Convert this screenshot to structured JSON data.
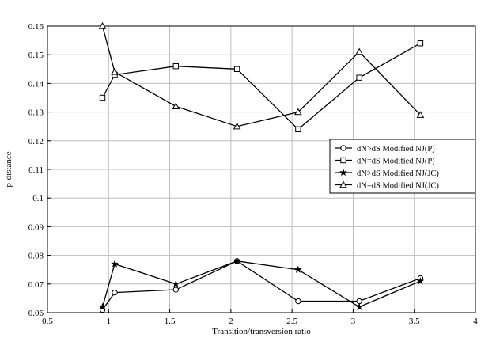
{
  "chart_data": {
    "type": "line",
    "xlabel": "Transition/transversion ratio",
    "ylabel": "p-distance",
    "xlim": [
      0.5,
      4
    ],
    "ylim": [
      0.06,
      0.16
    ],
    "xticks": [
      0.5,
      1,
      1.5,
      2,
      2.5,
      3,
      3.5,
      4
    ],
    "xtick_labels": [
      "0.5",
      "1",
      "1.5",
      "2",
      "2.5",
      "3",
      "3.5",
      "4"
    ],
    "yticks": [
      0.06,
      0.07,
      0.08,
      0.09,
      0.1,
      0.11,
      0.12,
      0.13,
      0.14,
      0.15,
      0.16
    ],
    "ytick_labels": [
      "0.06",
      "0.07",
      "0.08",
      "0.09",
      "0.1",
      "0.11",
      "0.12",
      "0.13",
      "0.14",
      "0.15",
      "0.16"
    ],
    "grid": true,
    "legend_position": "right",
    "series": [
      {
        "name": "dN>dS Modified NJ(P)",
        "marker": "circle",
        "color": "#000000",
        "x": [
          0.95,
          1.05,
          1.55,
          2.05,
          2.55,
          3.05,
          3.55
        ],
        "y": [
          0.061,
          0.067,
          0.068,
          0.078,
          0.064,
          0.064,
          0.072
        ]
      },
      {
        "name": "dN=dS Modified NJ(P)",
        "marker": "square",
        "color": "#000000",
        "x": [
          0.95,
          1.05,
          1.55,
          2.05,
          2.55,
          3.05,
          3.55
        ],
        "y": [
          0.135,
          0.143,
          0.146,
          0.145,
          0.124,
          0.142,
          0.154
        ]
      },
      {
        "name": "dN>dS Modified NJ(JC)",
        "marker": "star",
        "color": "#000000",
        "x": [
          0.95,
          1.05,
          1.55,
          2.05,
          2.55,
          3.05,
          3.55
        ],
        "y": [
          0.062,
          0.077,
          0.07,
          0.078,
          0.075,
          0.062,
          0.071
        ]
      },
      {
        "name": "dN=dS Modified NJ(JC)",
        "marker": "triangle",
        "color": "#000000",
        "x": [
          0.95,
          1.05,
          1.55,
          2.05,
          2.55,
          3.05,
          3.55
        ],
        "y": [
          0.16,
          0.144,
          0.132,
          0.125,
          0.13,
          0.151,
          0.129
        ]
      }
    ]
  }
}
